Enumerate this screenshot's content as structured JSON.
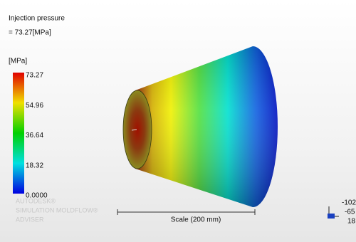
{
  "result": {
    "title": "Injection pressure",
    "max_value": "= 73.27[MPa]"
  },
  "legend": {
    "unit": "[MPa]",
    "labels": [
      "73.27",
      "54.96",
      "36.64",
      "18.32",
      "0.0000"
    ]
  },
  "watermark": [
    "AUTODESK®",
    "SIMULATION MOLDFLOW®",
    "ADVISER"
  ],
  "scale": {
    "label": "Scale (200 mm)"
  },
  "coordinates": [
    "-102",
    "-65",
    "18"
  ]
}
